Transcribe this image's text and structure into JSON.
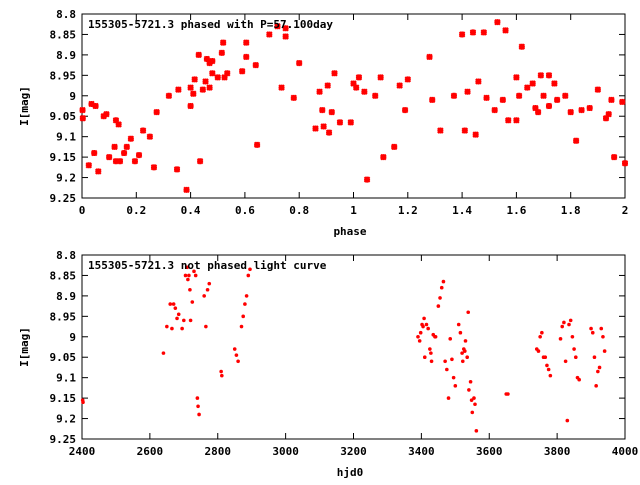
{
  "chart_data": [
    {
      "type": "scatter",
      "title": "155305-5721.3 phased with P=57.100day",
      "xlabel": "phase",
      "ylabel": "I[mag]",
      "xlim": [
        0,
        2
      ],
      "ylim": [
        9.25,
        8.8
      ],
      "y_inverted": true,
      "grid": false,
      "marker_color": "#ff0000",
      "marker": "asterisk",
      "xticks": [
        0,
        0.2,
        0.4,
        0.6,
        0.8,
        1,
        1.2,
        1.4,
        1.6,
        1.8,
        2
      ],
      "xtick_labels": [
        "0",
        "0.2",
        "0.4",
        "0.6",
        "0.8",
        "1",
        "1.2",
        "1.4",
        "1.6",
        "1.8",
        "2"
      ],
      "yticks": [
        8.8,
        8.85,
        8.9,
        8.95,
        9,
        9.05,
        9.1,
        9.15,
        9.2,
        9.25
      ],
      "ytick_labels": [
        "8.8",
        "8.85",
        "8.9",
        "8.95",
        "9",
        "9.05",
        "9.1",
        "9.15",
        "9.2",
        "9.25"
      ],
      "points": [
        [
          0.002,
          9.035
        ],
        [
          0.003,
          9.055
        ],
        [
          0.025,
          9.17
        ],
        [
          0.035,
          9.02
        ],
        [
          0.045,
          9.14
        ],
        [
          0.05,
          9.025
        ],
        [
          0.06,
          9.185
        ],
        [
          0.08,
          9.05
        ],
        [
          0.09,
          9.045
        ],
        [
          0.1,
          9.15
        ],
        [
          0.12,
          9.125
        ],
        [
          0.125,
          9.16
        ],
        [
          0.125,
          9.06
        ],
        [
          0.135,
          9.07
        ],
        [
          0.14,
          9.16
        ],
        [
          0.155,
          9.14
        ],
        [
          0.165,
          9.125
        ],
        [
          0.18,
          9.105
        ],
        [
          0.195,
          9.16
        ],
        [
          0.21,
          9.145
        ],
        [
          0.225,
          9.085
        ],
        [
          0.25,
          9.1
        ],
        [
          0.265,
          9.175
        ],
        [
          0.275,
          9.04
        ],
        [
          0.32,
          9
        ],
        [
          0.35,
          9.18
        ],
        [
          0.355,
          8.985
        ],
        [
          0.385,
          9.23
        ],
        [
          0.4,
          8.98
        ],
        [
          0.4,
          9.025
        ],
        [
          0.41,
          8.995
        ],
        [
          0.415,
          8.96
        ],
        [
          0.43,
          8.9
        ],
        [
          0.435,
          9.16
        ],
        [
          0.445,
          8.985
        ],
        [
          0.455,
          8.965
        ],
        [
          0.46,
          8.91
        ],
        [
          0.47,
          8.98
        ],
        [
          0.47,
          8.92
        ],
        [
          0.48,
          8.915
        ],
        [
          0.48,
          8.945
        ],
        [
          0.5,
          8.955
        ],
        [
          0.515,
          8.895
        ],
        [
          0.52,
          8.87
        ],
        [
          0.525,
          8.955
        ],
        [
          0.535,
          8.945
        ],
        [
          0.59,
          8.94
        ],
        [
          0.605,
          8.87
        ],
        [
          0.605,
          8.905
        ],
        [
          0.64,
          8.925
        ],
        [
          0.645,
          9.12
        ],
        [
          0.69,
          8.85
        ],
        [
          0.72,
          8.83
        ],
        [
          0.735,
          8.98
        ],
        [
          0.75,
          8.835
        ],
        [
          0.75,
          8.855
        ],
        [
          0.78,
          9.005
        ],
        [
          0.8,
          8.92
        ],
        [
          0.86,
          9.08
        ],
        [
          0.875,
          8.99
        ],
        [
          0.885,
          9.035
        ],
        [
          0.89,
          9.075
        ],
        [
          0.905,
          8.975
        ],
        [
          0.91,
          9.09
        ],
        [
          0.92,
          9.04
        ],
        [
          0.93,
          8.945
        ],
        [
          0.95,
          9.065
        ],
        [
          0.99,
          9.065
        ],
        [
          1.0,
          8.97
        ],
        [
          1.01,
          8.98
        ],
        [
          1.02,
          8.955
        ],
        [
          1.04,
          8.99
        ],
        [
          1.05,
          9.205
        ],
        [
          1.08,
          9.0
        ],
        [
          1.1,
          8.955
        ],
        [
          1.11,
          9.15
        ],
        [
          1.15,
          9.125
        ],
        [
          1.17,
          8.975
        ],
        [
          1.19,
          9.035
        ],
        [
          1.2,
          8.96
        ],
        [
          1.28,
          8.905
        ],
        [
          1.29,
          9.01
        ],
        [
          1.32,
          9.085
        ],
        [
          1.37,
          9.0
        ],
        [
          1.4,
          8.85
        ],
        [
          1.41,
          9.085
        ],
        [
          1.42,
          8.99
        ],
        [
          1.44,
          8.845
        ],
        [
          1.45,
          9.095
        ],
        [
          1.46,
          8.965
        ],
        [
          1.48,
          8.845
        ],
        [
          1.49,
          9.005
        ],
        [
          1.52,
          9.035
        ],
        [
          1.53,
          8.82
        ],
        [
          1.55,
          9.01
        ],
        [
          1.56,
          8.84
        ],
        [
          1.57,
          9.06
        ],
        [
          1.6,
          8.955
        ],
        [
          1.6,
          9.06
        ],
        [
          1.61,
          9.0
        ],
        [
          1.62,
          8.88
        ],
        [
          1.64,
          8.98
        ],
        [
          1.66,
          8.97
        ],
        [
          1.67,
          9.03
        ],
        [
          1.68,
          9.04
        ],
        [
          1.69,
          8.95
        ],
        [
          1.7,
          9.0
        ],
        [
          1.72,
          8.95
        ],
        [
          1.72,
          9.025
        ],
        [
          1.74,
          8.97
        ],
        [
          1.75,
          9.01
        ],
        [
          1.78,
          9.0
        ],
        [
          1.8,
          9.04
        ],
        [
          1.82,
          9.11
        ],
        [
          1.84,
          9.035
        ],
        [
          1.87,
          9.03
        ],
        [
          1.9,
          8.985
        ],
        [
          1.93,
          9.055
        ],
        [
          1.94,
          9.045
        ],
        [
          1.95,
          9.01
        ],
        [
          1.96,
          9.15
        ],
        [
          1.99,
          9.015
        ],
        [
          2.0,
          9.165
        ]
      ]
    },
    {
      "type": "scatter",
      "title": "155305-5721.3 not phased light curve",
      "xlabel": "hjd0",
      "ylabel": "I[mag]",
      "xlim": [
        2400,
        4000
      ],
      "ylim": [
        9.25,
        8.8
      ],
      "y_inverted": true,
      "grid": false,
      "marker_color": "#ff0000",
      "marker": "dot",
      "xticks": [
        2400,
        2600,
        2800,
        3000,
        3200,
        3400,
        3600,
        3800,
        4000
      ],
      "xtick_labels": [
        "2400",
        "2600",
        "2800",
        "3000",
        "3200",
        "3400",
        "3600",
        "3800",
        "4000"
      ],
      "yticks": [
        8.8,
        8.85,
        8.9,
        8.95,
        9,
        9.05,
        9.1,
        9.15,
        9.2,
        9.25
      ],
      "ytick_labels": [
        "8.8",
        "8.85",
        "8.9",
        "8.95",
        "9",
        "9.05",
        "9.1",
        "9.15",
        "9.2",
        "9.25"
      ],
      "points": [
        [
          2402,
          9.155
        ],
        [
          2403,
          9.16
        ],
        [
          2640,
          9.04
        ],
        [
          2650,
          8.975
        ],
        [
          2660,
          8.92
        ],
        [
          2665,
          8.98
        ],
        [
          2670,
          8.92
        ],
        [
          2675,
          8.93
        ],
        [
          2680,
          8.955
        ],
        [
          2685,
          8.945
        ],
        [
          2695,
          8.98
        ],
        [
          2700,
          8.96
        ],
        [
          2705,
          8.85
        ],
        [
          2710,
          8.83
        ],
        [
          2712,
          8.86
        ],
        [
          2715,
          8.85
        ],
        [
          2718,
          8.885
        ],
        [
          2720,
          8.96
        ],
        [
          2725,
          8.915
        ],
        [
          2730,
          8.84
        ],
        [
          2735,
          8.85
        ],
        [
          2740,
          9.15
        ],
        [
          2742,
          9.17
        ],
        [
          2745,
          9.19
        ],
        [
          2760,
          8.9
        ],
        [
          2765,
          8.975
        ],
        [
          2770,
          8.885
        ],
        [
          2775,
          8.87
        ],
        [
          2810,
          9.085
        ],
        [
          2812,
          9.095
        ],
        [
          2850,
          9.03
        ],
        [
          2855,
          9.045
        ],
        [
          2860,
          9.06
        ],
        [
          2870,
          8.975
        ],
        [
          2875,
          8.95
        ],
        [
          2880,
          8.92
        ],
        [
          2885,
          8.9
        ],
        [
          2890,
          8.85
        ],
        [
          2895,
          8.835
        ],
        [
          3390,
          9.0
        ],
        [
          3395,
          9.01
        ],
        [
          3398,
          8.99
        ],
        [
          3402,
          8.97
        ],
        [
          3405,
          8.975
        ],
        [
          3408,
          8.955
        ],
        [
          3410,
          9.05
        ],
        [
          3415,
          8.97
        ],
        [
          3420,
          8.98
        ],
        [
          3425,
          9.03
        ],
        [
          3428,
          9.04
        ],
        [
          3430,
          9.06
        ],
        [
          3435,
          8.995
        ],
        [
          3440,
          9.0
        ],
        [
          3442,
          9.0
        ],
        [
          3450,
          8.925
        ],
        [
          3455,
          8.905
        ],
        [
          3460,
          8.88
        ],
        [
          3465,
          8.865
        ],
        [
          3470,
          9.06
        ],
        [
          3475,
          9.08
        ],
        [
          3480,
          9.15
        ],
        [
          3485,
          9.005
        ],
        [
          3490,
          9.055
        ],
        [
          3495,
          9.1
        ],
        [
          3500,
          9.12
        ],
        [
          3510,
          8.97
        ],
        [
          3515,
          8.99
        ],
        [
          3520,
          9.04
        ],
        [
          3522,
          9.06
        ],
        [
          3525,
          9.03
        ],
        [
          3528,
          9.035
        ],
        [
          3530,
          9.01
        ],
        [
          3535,
          9.05
        ],
        [
          3538,
          8.94
        ],
        [
          3540,
          9.13
        ],
        [
          3545,
          9.11
        ],
        [
          3548,
          9.155
        ],
        [
          3550,
          9.185
        ],
        [
          3555,
          9.15
        ],
        [
          3558,
          9.165
        ],
        [
          3562,
          9.23
        ],
        [
          3650,
          9.14
        ],
        [
          3655,
          9.14
        ],
        [
          3740,
          9.03
        ],
        [
          3745,
          9.035
        ],
        [
          3750,
          9.0
        ],
        [
          3755,
          8.99
        ],
        [
          3760,
          9.05
        ],
        [
          3765,
          9.05
        ],
        [
          3770,
          9.07
        ],
        [
          3775,
          9.08
        ],
        [
          3780,
          9.095
        ],
        [
          3810,
          9.005
        ],
        [
          3815,
          8.975
        ],
        [
          3820,
          8.965
        ],
        [
          3825,
          9.06
        ],
        [
          3830,
          9.205
        ],
        [
          3835,
          8.97
        ],
        [
          3840,
          8.96
        ],
        [
          3845,
          9.0
        ],
        [
          3850,
          9.03
        ],
        [
          3855,
          9.05
        ],
        [
          3860,
          9.1
        ],
        [
          3865,
          9.105
        ],
        [
          3900,
          8.98
        ],
        [
          3905,
          8.99
        ],
        [
          3910,
          9.05
        ],
        [
          3915,
          9.12
        ],
        [
          3920,
          9.085
        ],
        [
          3925,
          9.075
        ],
        [
          3930,
          8.98
        ],
        [
          3935,
          9.0
        ],
        [
          3940,
          9.035
        ]
      ]
    }
  ]
}
